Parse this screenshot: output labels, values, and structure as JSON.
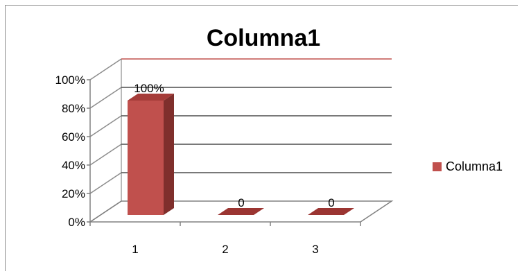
{
  "chart_data": {
    "type": "bar",
    "title": "Columna1",
    "categories": [
      "1",
      "2",
      "3"
    ],
    "series": [
      {
        "name": "Columna1",
        "values": [
          1.0,
          0,
          0
        ],
        "data_labels": [
          "100%",
          "0",
          "0"
        ],
        "color": "#c0504d"
      }
    ],
    "y_ticks": [
      "0%",
      "20%",
      "40%",
      "60%",
      "80%",
      "100%"
    ],
    "ylim": [
      0,
      1
    ],
    "grid": true,
    "three_d": true,
    "legend_position": "right"
  }
}
